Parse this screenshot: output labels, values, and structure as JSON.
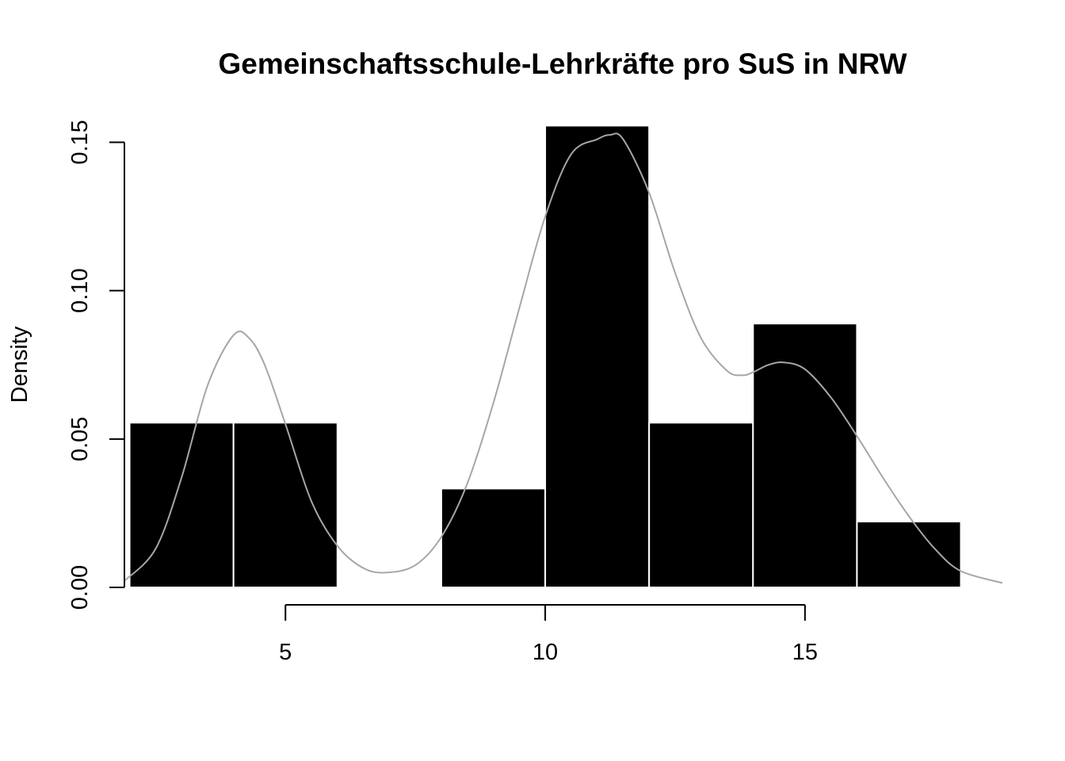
{
  "chart_data": {
    "type": "bar",
    "title": "Gemeinschaftsschule-Lehrkräfte pro SuS in NRW",
    "xlabel": "",
    "ylabel": "Density",
    "xlim": [
      1.9,
      18.8
    ],
    "ylim": [
      0,
      0.156
    ],
    "x_ticks": [
      5,
      10,
      15
    ],
    "y_ticks": [
      0.0,
      0.05,
      0.1,
      0.15
    ],
    "x_tick_labels": [
      "5",
      "10",
      "15"
    ],
    "y_tick_labels": [
      "0.00",
      "0.05",
      "0.10",
      "0.15"
    ],
    "bins": [
      {
        "from": 2,
        "to": 4,
        "density": 0.0555
      },
      {
        "from": 4,
        "to": 6,
        "density": 0.0555
      },
      {
        "from": 8,
        "to": 10,
        "density": 0.0333
      },
      {
        "from": 10,
        "to": 12,
        "density": 0.1556
      },
      {
        "from": 12,
        "to": 14,
        "density": 0.0555
      },
      {
        "from": 14,
        "to": 16,
        "density": 0.0889
      },
      {
        "from": 16,
        "to": 18,
        "density": 0.0222
      }
    ],
    "density_curve": {
      "x": [
        1.9,
        2.5,
        3.0,
        3.5,
        4.0,
        4.3,
        4.6,
        5.0,
        5.5,
        6.0,
        6.5,
        6.95,
        7.5,
        8.0,
        8.5,
        9.0,
        9.5,
        10.0,
        10.5,
        11.0,
        11.25,
        11.5,
        12.0,
        12.5,
        13.0,
        13.5,
        13.8,
        14.0,
        14.3,
        14.6,
        15.0,
        15.5,
        16.0,
        16.5,
        17.0,
        17.5,
        18.0,
        18.8
      ],
      "y": [
        0.0022,
        0.013,
        0.037,
        0.068,
        0.085,
        0.084,
        0.075,
        0.055,
        0.029,
        0.014,
        0.0065,
        0.005,
        0.0075,
        0.017,
        0.035,
        0.062,
        0.094,
        0.125,
        0.146,
        0.151,
        0.1525,
        0.151,
        0.133,
        0.106,
        0.084,
        0.073,
        0.0715,
        0.0725,
        0.075,
        0.0758,
        0.0735,
        0.064,
        0.051,
        0.037,
        0.024,
        0.013,
        0.0055,
        0.0015
      ],
      "color": "#a6a6a6"
    },
    "bar_color": "#000000",
    "bar_border_color": "#ffffff",
    "grid": false,
    "legend": "none"
  }
}
